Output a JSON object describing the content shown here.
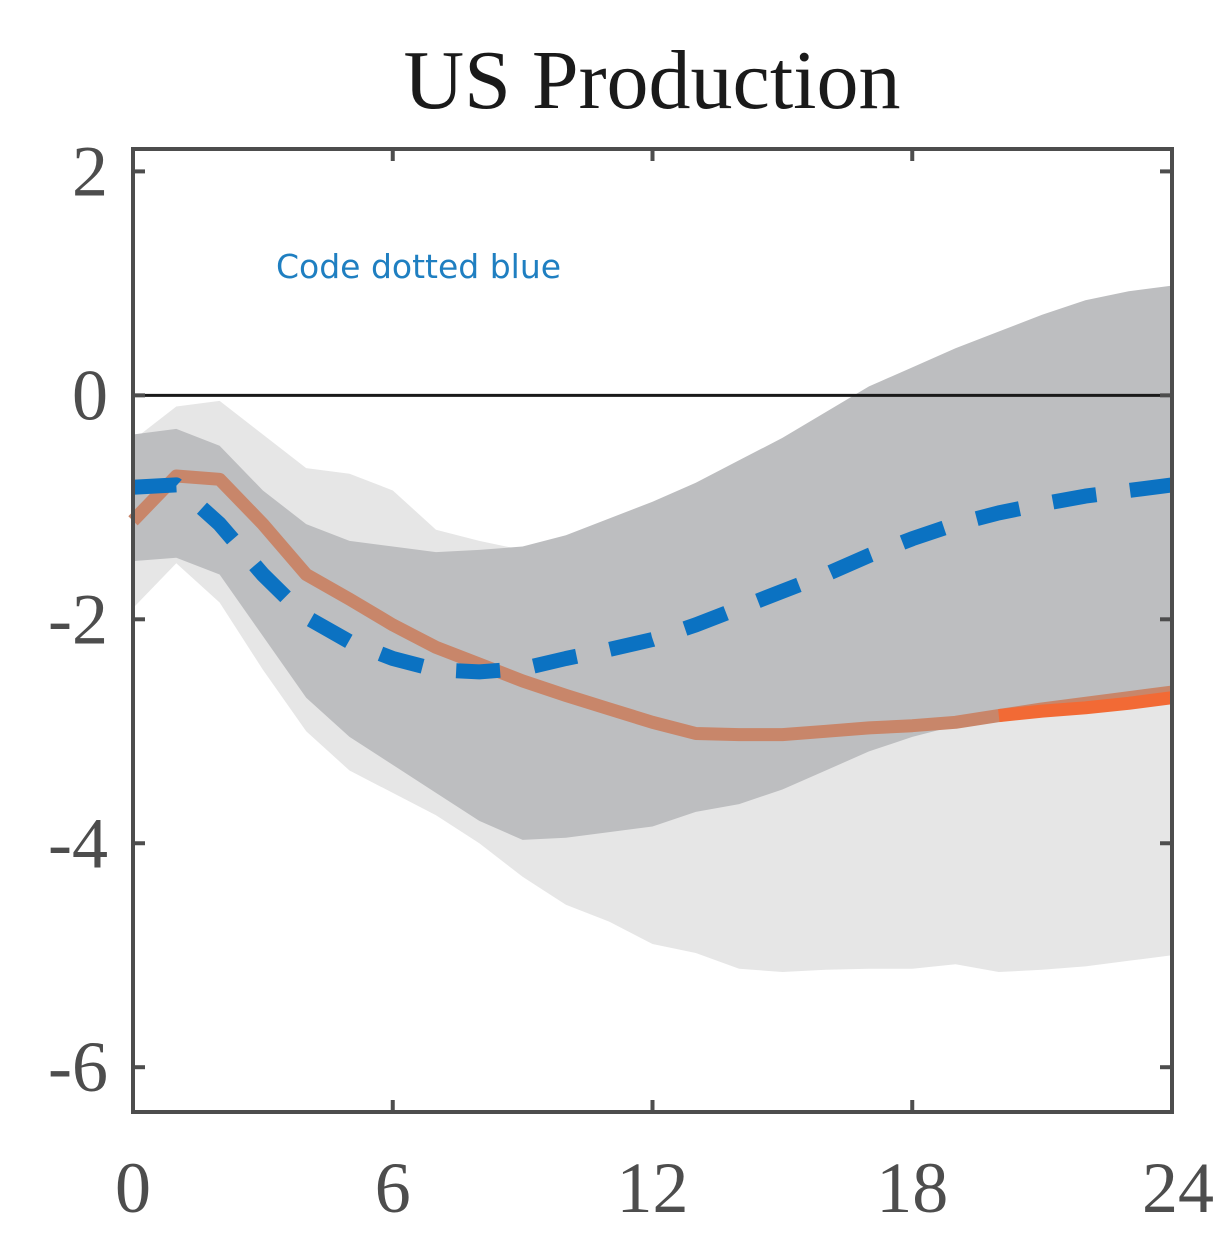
{
  "chart_data": {
    "type": "line",
    "title": "US Production",
    "xlabel": "",
    "ylabel": "",
    "xlim": [
      0,
      24
    ],
    "ylim": [
      -6.4,
      2.2
    ],
    "xticks": [
      0,
      6,
      12,
      18,
      24
    ],
    "yticks": [
      2,
      0,
      -2,
      -4,
      -6
    ],
    "xtick_labels": [
      "0",
      "6",
      "12",
      "18",
      "24"
    ],
    "ytick_labels": [
      "2",
      "0",
      "-2",
      "-4",
      "-6"
    ],
    "zero_line": 0,
    "annotation": {
      "text": "Code dotted blue",
      "color": "#1f7fc1"
    },
    "bands": [
      {
        "name": "",
        "color": "#e6e6e6",
        "x": [
          0,
          1,
          2,
          3,
          4,
          5,
          6,
          7,
          8,
          9,
          10,
          11,
          12,
          13,
          14,
          15,
          16,
          17,
          18,
          19,
          20,
          21,
          22,
          23,
          24
        ],
        "upper": [
          -0.4,
          -0.1,
          -0.05,
          -0.35,
          -0.65,
          -0.7,
          -0.85,
          -1.2,
          -1.3,
          -1.38,
          -1.35,
          -1.35,
          -1.35,
          -1.33,
          -1.3,
          -1.28,
          -1.2,
          -1.1,
          -1.05,
          -1.0,
          -0.95,
          -0.9,
          -0.85,
          -0.8,
          -0.75
        ],
        "lower": [
          -1.9,
          -1.5,
          -1.85,
          -2.45,
          -3.0,
          -3.35,
          -3.55,
          -3.75,
          -4.0,
          -4.3,
          -4.55,
          -4.7,
          -4.9,
          -4.98,
          -5.12,
          -5.15,
          -5.13,
          -5.12,
          -5.12,
          -5.08,
          -5.15,
          -5.13,
          -5.1,
          -5.05,
          -5.0
        ]
      },
      {
        "name": "",
        "color": "#bdbec0",
        "x": [
          0,
          1,
          2,
          3,
          4,
          5,
          6,
          7,
          8,
          9,
          10,
          11,
          12,
          13,
          14,
          15,
          16,
          17,
          18,
          19,
          20,
          21,
          22,
          23,
          24
        ],
        "upper": [
          -0.35,
          -0.3,
          -0.45,
          -0.85,
          -1.15,
          -1.3,
          -1.35,
          -1.4,
          -1.38,
          -1.35,
          -1.25,
          -1.1,
          -0.95,
          -0.78,
          -0.58,
          -0.38,
          -0.15,
          0.08,
          0.25,
          0.42,
          0.57,
          0.72,
          0.85,
          0.93,
          0.98
        ],
        "lower": [
          -1.48,
          -1.45,
          -1.6,
          -2.15,
          -2.7,
          -3.05,
          -3.3,
          -3.55,
          -3.8,
          -3.97,
          -3.95,
          -3.9,
          -3.85,
          -3.72,
          -3.65,
          -3.52,
          -3.35,
          -3.18,
          -3.05,
          -2.95,
          -2.85,
          -2.78,
          -2.72,
          -2.68,
          -2.65
        ]
      }
    ],
    "series": [
      {
        "name": "",
        "style": "solid",
        "color": "#c8866a",
        "x": [
          0,
          1,
          2,
          3,
          4,
          5,
          6,
          7,
          8,
          9,
          10,
          11,
          12,
          13,
          14,
          15,
          16,
          17,
          18,
          19,
          20,
          21,
          22,
          23,
          24
        ],
        "y": [
          -1.12,
          -0.72,
          -0.75,
          -1.15,
          -1.6,
          -1.82,
          -2.05,
          -2.25,
          -2.4,
          -2.55,
          -2.68,
          -2.8,
          -2.92,
          -3.02,
          -3.03,
          -3.03,
          -3.0,
          -2.97,
          -2.95,
          -2.92,
          -2.86,
          -2.8,
          -2.75,
          -2.7,
          -2.65
        ]
      },
      {
        "name": "",
        "style": "solid",
        "color": "#f26a35",
        "x": [
          20,
          21,
          22,
          23,
          24
        ],
        "y": [
          -2.86,
          -2.82,
          -2.79,
          -2.75,
          -2.7
        ]
      },
      {
        "name": "",
        "style": "dashed",
        "color": "#0b72c2",
        "x": [
          0,
          1,
          2,
          3,
          4,
          5,
          6,
          7,
          8,
          9,
          10,
          11,
          12,
          13,
          14,
          15,
          16,
          17,
          18,
          19,
          20,
          21,
          22,
          23,
          24
        ],
        "y": [
          -0.82,
          -0.8,
          -1.15,
          -1.6,
          -1.98,
          -2.2,
          -2.35,
          -2.45,
          -2.47,
          -2.44,
          -2.35,
          -2.27,
          -2.18,
          -2.05,
          -1.9,
          -1.75,
          -1.6,
          -1.43,
          -1.28,
          -1.15,
          -1.05,
          -0.97,
          -0.9,
          -0.85,
          -0.8
        ]
      }
    ],
    "grid": false,
    "legend": "none"
  }
}
